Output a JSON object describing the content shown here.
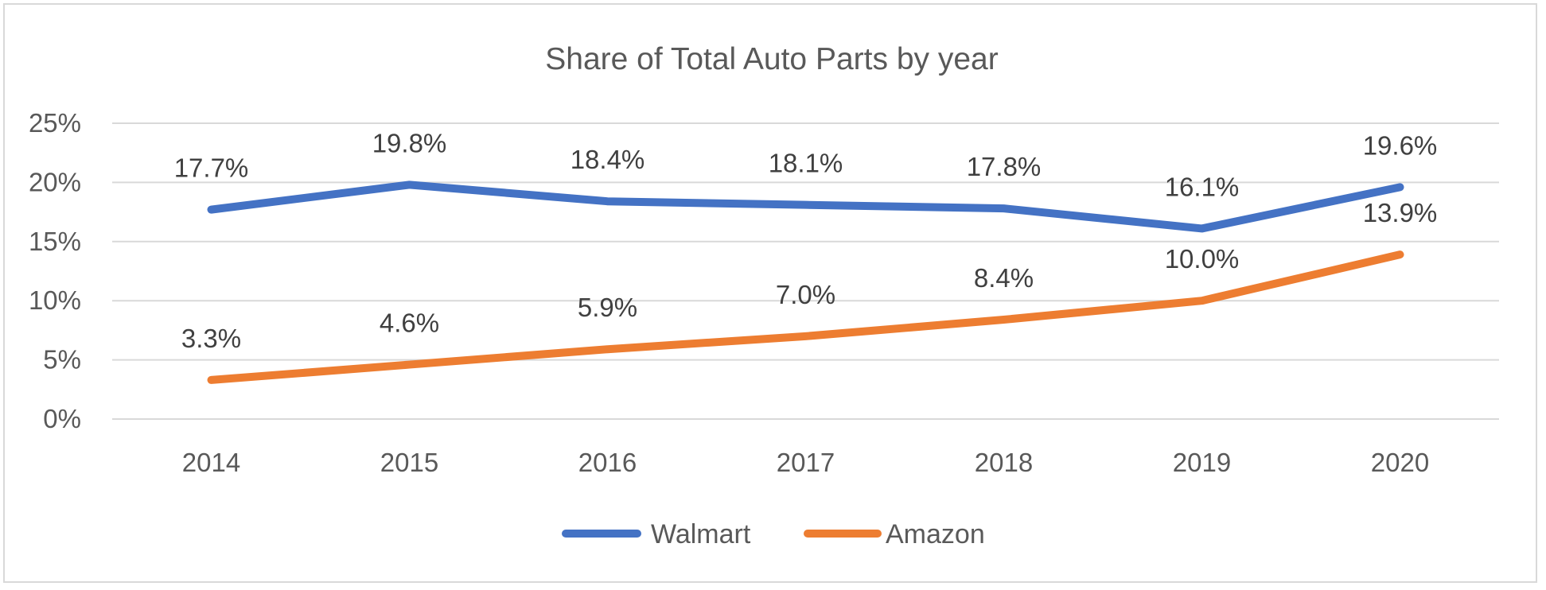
{
  "chart_data": {
    "type": "line",
    "title": "Share of Total Auto Parts by year",
    "xlabel": "",
    "ylabel": "",
    "categories": [
      "2014",
      "2015",
      "2016",
      "2017",
      "2018",
      "2019",
      "2020"
    ],
    "ylim": [
      0,
      25
    ],
    "yticks": [
      0,
      5,
      10,
      15,
      20,
      25
    ],
    "ytick_labels": [
      "0%",
      "5%",
      "10%",
      "15%",
      "20%",
      "25%"
    ],
    "grid": true,
    "legend_position": "bottom",
    "series": [
      {
        "name": "Walmart",
        "color": "#4472C4",
        "values": [
          17.7,
          19.8,
          18.4,
          18.1,
          17.8,
          16.1,
          19.6
        ],
        "labels": [
          "17.7%",
          "19.8%",
          "18.4%",
          "18.1%",
          "17.8%",
          "16.1%",
          "19.6%"
        ]
      },
      {
        "name": "Amazon",
        "color": "#ED7D31",
        "values": [
          3.3,
          4.6,
          5.9,
          7.0,
          8.4,
          10.0,
          13.9
        ],
        "labels": [
          "3.3%",
          "4.6%",
          "5.9%",
          "7.0%",
          "8.4%",
          "10.0%",
          "13.9%"
        ]
      }
    ]
  }
}
